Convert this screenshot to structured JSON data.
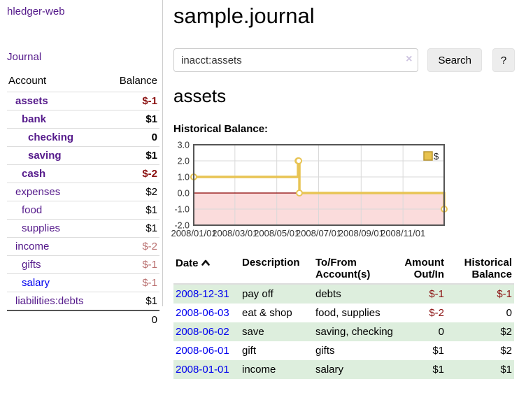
{
  "sidebar": {
    "app_title": "hledger-web",
    "journal_label": "Journal",
    "accounts_table": {
      "headers": {
        "account": "Account",
        "balance": "Balance"
      },
      "rows": [
        {
          "name": "assets",
          "balance": "$-1",
          "depth": 0,
          "bold": true,
          "balance_style": "neg-strong",
          "link_color": "purple"
        },
        {
          "name": "bank",
          "balance": "$1",
          "depth": 1,
          "bold": true,
          "balance_style": "plain",
          "link_color": "purple"
        },
        {
          "name": "checking",
          "balance": "0",
          "depth": 2,
          "bold": true,
          "balance_style": "plain",
          "link_color": "purple"
        },
        {
          "name": "saving",
          "balance": "$1",
          "depth": 2,
          "bold": true,
          "balance_style": "plain",
          "link_color": "purple"
        },
        {
          "name": "cash",
          "balance": "$-2",
          "depth": 1,
          "bold": true,
          "balance_style": "neg-strong",
          "link_color": "purple"
        },
        {
          "name": "expenses",
          "balance": "$2",
          "depth": 0,
          "bold": false,
          "balance_style": "plain",
          "link_color": "purple"
        },
        {
          "name": "food",
          "balance": "$1",
          "depth": 1,
          "bold": false,
          "balance_style": "plain",
          "link_color": "purple"
        },
        {
          "name": "supplies",
          "balance": "$1",
          "depth": 1,
          "bold": false,
          "balance_style": "plain",
          "link_color": "purple"
        },
        {
          "name": "income",
          "balance": "$-2",
          "depth": 0,
          "bold": false,
          "balance_style": "neg-soft",
          "link_color": "purple"
        },
        {
          "name": "gifts",
          "balance": "$-1",
          "depth": 1,
          "bold": false,
          "balance_style": "neg-soft",
          "link_color": "purple"
        },
        {
          "name": "salary",
          "balance": "$-1",
          "depth": 1,
          "bold": false,
          "balance_style": "neg-soft",
          "link_color": "blue"
        },
        {
          "name": "liabilities:debts",
          "balance": "$1",
          "depth": 0,
          "bold": false,
          "balance_style": "plain",
          "link_color": "purple"
        }
      ],
      "total": "0"
    }
  },
  "header": {
    "title": "sample.journal"
  },
  "search": {
    "value": "inacct:assets",
    "clear_icon": "×",
    "button_label": "Search",
    "help_label": "?"
  },
  "account_page": {
    "heading": "assets",
    "chart_label": "Historical Balance:"
  },
  "chart_data": {
    "type": "line",
    "step": true,
    "title": "Historical Balance:",
    "legend": "$",
    "legend_position": "top-right",
    "grid": true,
    "xlim": [
      "2008-01-01",
      "2008-12-31"
    ],
    "ylim": [
      -2,
      3
    ],
    "y_ticks": [
      "3.0",
      "2.0",
      "1.0",
      "0.0",
      "-1.0",
      "-2.0"
    ],
    "y_tick_values": [
      3,
      2,
      1,
      0,
      -1,
      -2
    ],
    "x_ticks": [
      "2008/01/01",
      "2008/03/01",
      "2008/05/01",
      "2008/07/01",
      "2008/09/01",
      "2008/11/01"
    ],
    "x_tick_dates": [
      "2008-01-01",
      "2008-03-01",
      "2008-05-01",
      "2008-07-01",
      "2008-09-01",
      "2008-11-01"
    ],
    "series": [
      {
        "name": "$",
        "points": [
          {
            "x": "2008-01-01",
            "y": 1
          },
          {
            "x": "2008-06-01",
            "y": 2
          },
          {
            "x": "2008-06-02",
            "y": 2
          },
          {
            "x": "2008-06-03",
            "y": 0
          },
          {
            "x": "2008-12-31",
            "y": -1
          }
        ]
      }
    ],
    "colors": {
      "line": "#e8c454",
      "marker_fill": "#ffffff",
      "negative_region": "#fbdcdc",
      "zero_line": "#8b0000",
      "grid": "#d9d9d9",
      "border": "#555555",
      "legend_swatch": "#e8c34f",
      "legend_swatch_border": "#b89530"
    }
  },
  "register_table": {
    "headers": {
      "date": "Date",
      "description": "Description",
      "accounts": "To/From Account(s)",
      "amount": "Amount Out/In",
      "balance": "Historical Balance"
    },
    "sort": {
      "column": "date",
      "direction": "ascending"
    },
    "rows": [
      {
        "date": "2008-12-31",
        "description": "pay off",
        "accounts": "debts",
        "amount": "$-1",
        "amount_neg": true,
        "balance": "$-1",
        "balance_neg": true
      },
      {
        "date": "2008-06-03",
        "description": "eat & shop",
        "accounts": "food, supplies",
        "amount": "$-2",
        "amount_neg": true,
        "balance": "0",
        "balance_neg": false
      },
      {
        "date": "2008-06-02",
        "description": "save",
        "accounts": "saving, checking",
        "amount": "0",
        "amount_neg": false,
        "balance": "$2",
        "balance_neg": false
      },
      {
        "date": "2008-06-01",
        "description": "gift",
        "accounts": "gifts",
        "amount": "$1",
        "amount_neg": false,
        "balance": "$2",
        "balance_neg": false
      },
      {
        "date": "2008-01-01",
        "description": "income",
        "accounts": "salary",
        "amount": "$1",
        "amount_neg": false,
        "balance": "$1",
        "balance_neg": false
      }
    ]
  },
  "colors": {
    "link_purple": "#551A8B",
    "link_blue": "#0000EE",
    "negative_strong": "#8b1212",
    "negative_soft": "#b96f6f",
    "row_stripe_green": "#ddeedd"
  }
}
